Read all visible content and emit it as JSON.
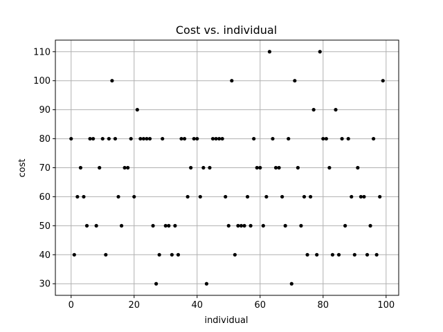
{
  "chart_data": {
    "type": "scatter",
    "title": "Cost vs. individual",
    "xlabel": "individual",
    "ylabel": "cost",
    "xlim": [
      -5,
      104
    ],
    "ylim": [
      26,
      114
    ],
    "xticks": [
      0,
      20,
      40,
      60,
      80,
      100
    ],
    "yticks": [
      30,
      40,
      50,
      60,
      70,
      80,
      90,
      100,
      110
    ],
    "grid": true,
    "marker_color": "#000000",
    "x": [
      0,
      1,
      2,
      3,
      4,
      5,
      6,
      7,
      8,
      9,
      10,
      11,
      12,
      13,
      14,
      15,
      16,
      17,
      18,
      19,
      20,
      21,
      22,
      23,
      24,
      25,
      26,
      27,
      28,
      29,
      30,
      31,
      32,
      33,
      34,
      35,
      36,
      37,
      38,
      39,
      40,
      41,
      42,
      43,
      44,
      45,
      46,
      47,
      48,
      49,
      50,
      51,
      52,
      53,
      54,
      55,
      56,
      57,
      58,
      59,
      60,
      61,
      62,
      63,
      64,
      65,
      66,
      67,
      68,
      69,
      70,
      71,
      72,
      73,
      74,
      75,
      76,
      77,
      78,
      79,
      80,
      81,
      82,
      83,
      84,
      85,
      86,
      87,
      88,
      89,
      90,
      91,
      92,
      93,
      94,
      95,
      96,
      97,
      98,
      99
    ],
    "y": [
      80,
      40,
      60,
      70,
      60,
      50,
      80,
      80,
      50,
      70,
      80,
      40,
      80,
      100,
      80,
      60,
      50,
      70,
      70,
      80,
      60,
      90,
      80,
      80,
      80,
      80,
      50,
      30,
      40,
      80,
      50,
      50,
      40,
      50,
      40,
      80,
      80,
      60,
      70,
      80,
      80,
      60,
      70,
      30,
      70,
      80,
      80,
      80,
      80,
      60,
      50,
      100,
      40,
      50,
      50,
      50,
      60,
      50,
      80,
      70,
      70,
      50,
      60,
      110,
      80,
      70,
      70,
      60,
      50,
      80,
      30,
      100,
      70,
      50,
      60,
      40,
      60,
      90,
      40,
      110,
      80,
      80,
      70,
      40,
      90,
      40,
      80,
      50,
      80,
      60,
      40,
      70,
      60,
      60,
      40,
      50,
      80,
      40,
      60,
      100
    ]
  }
}
